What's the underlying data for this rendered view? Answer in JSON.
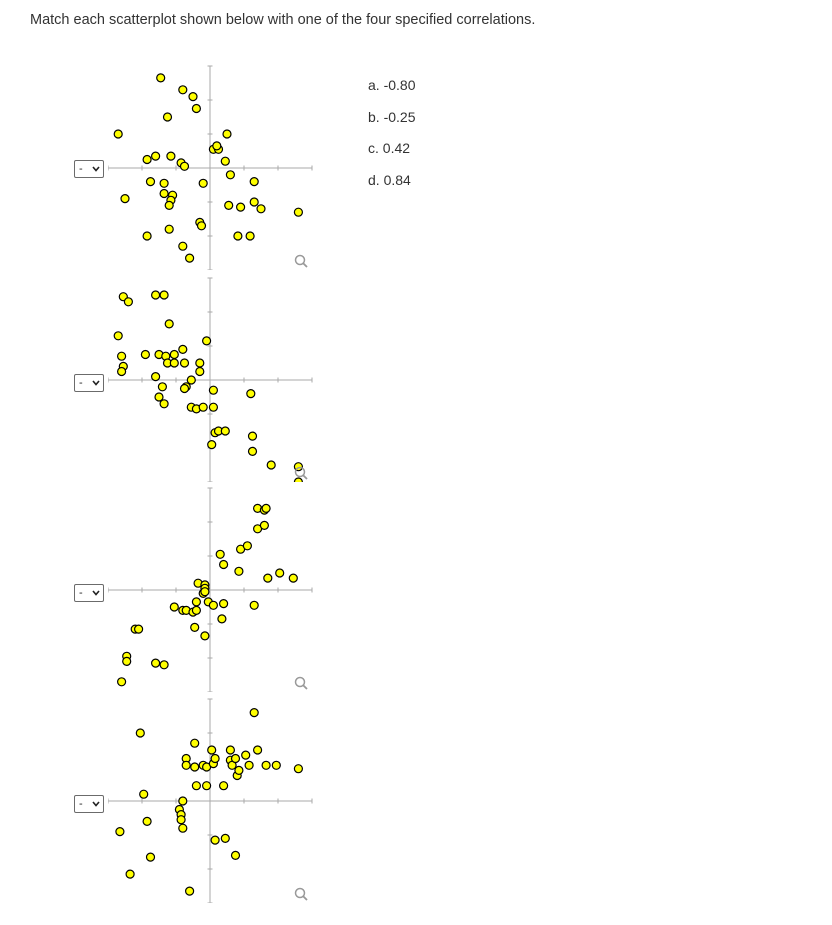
{
  "question": "Match each scatterplot shown below with one of the four specified correlations.",
  "select_value": "-",
  "choices": [
    "a. -0.80",
    "b. -0.25",
    "c. 0.42",
    "d. 0.84"
  ],
  "colors": {
    "point_fill": "#ffff00",
    "point_stroke": "#000000",
    "axis": "#aaaaaa",
    "zoom": "#999999"
  },
  "icons": [
    "chevron-down-icon",
    "magnifier-icon"
  ],
  "chart_data": [
    {
      "type": "scatter",
      "xlim": [
        -3,
        3
      ],
      "ylim": [
        -3,
        3
      ],
      "points": [
        [
          -1.45,
          2.65
        ],
        [
          -0.8,
          2.3
        ],
        [
          -1.25,
          1.5
        ],
        [
          -0.4,
          1.75
        ],
        [
          -0.5,
          2.1
        ],
        [
          -2.7,
          1.0
        ],
        [
          -1.85,
          0.25
        ],
        [
          -1.6,
          0.35
        ],
        [
          -1.15,
          0.35
        ],
        [
          -0.85,
          0.15
        ],
        [
          -0.75,
          0.05
        ],
        [
          0.5,
          1.0
        ],
        [
          0.1,
          0.55
        ],
        [
          0.25,
          0.55
        ],
        [
          0.2,
          0.65
        ],
        [
          0.45,
          0.2
        ],
        [
          0.6,
          -0.2
        ],
        [
          1.3,
          -0.4
        ],
        [
          -1.75,
          -0.4
        ],
        [
          -1.35,
          -0.45
        ],
        [
          -1.35,
          -0.75
        ],
        [
          -1.1,
          -0.8
        ],
        [
          -1.15,
          -0.95
        ],
        [
          -1.2,
          -1.1
        ],
        [
          -0.2,
          -0.45
        ],
        [
          0.55,
          -1.1
        ],
        [
          0.9,
          -1.15
        ],
        [
          1.3,
          -1.0
        ],
        [
          1.5,
          -1.2
        ],
        [
          -2.5,
          -0.9
        ],
        [
          -1.85,
          -2.0
        ],
        [
          -1.2,
          -1.8
        ],
        [
          -0.8,
          -2.3
        ],
        [
          -0.3,
          -1.6
        ],
        [
          -0.25,
          -1.7
        ],
        [
          0.82,
          -2.0
        ],
        [
          1.18,
          -2.0
        ],
        [
          -0.6,
          -2.65
        ],
        [
          2.6,
          -1.3
        ]
      ]
    },
    {
      "type": "scatter",
      "xlim": [
        -3,
        3
      ],
      "ylim": [
        -3,
        3
      ],
      "points": [
        [
          -2.55,
          2.45
        ],
        [
          -2.4,
          2.3
        ],
        [
          -1.6,
          2.5
        ],
        [
          -1.35,
          2.5
        ],
        [
          -1.2,
          1.65
        ],
        [
          -2.7,
          1.3
        ],
        [
          -2.6,
          0.7
        ],
        [
          -2.55,
          0.4
        ],
        [
          -2.6,
          0.25
        ],
        [
          -1.9,
          0.75
        ],
        [
          -1.5,
          0.75
        ],
        [
          -1.3,
          0.7
        ],
        [
          -1.05,
          0.75
        ],
        [
          -1.25,
          0.5
        ],
        [
          -1.05,
          0.5
        ],
        [
          -0.8,
          0.9
        ],
        [
          -0.75,
          0.5
        ],
        [
          -0.1,
          1.15
        ],
        [
          -0.3,
          0.5
        ],
        [
          -0.3,
          0.25
        ],
        [
          -1.6,
          0.1
        ],
        [
          -1.4,
          -0.2
        ],
        [
          -1.5,
          -0.5
        ],
        [
          -1.35,
          -0.7
        ],
        [
          -0.7,
          -0.2
        ],
        [
          -0.75,
          -0.25
        ],
        [
          -0.55,
          0.0
        ],
        [
          0.1,
          -0.3
        ],
        [
          -0.55,
          -0.8
        ],
        [
          -0.4,
          -0.85
        ],
        [
          -0.2,
          -0.8
        ],
        [
          0.1,
          -0.8
        ],
        [
          1.2,
          -0.4
        ],
        [
          0.15,
          -1.55
        ],
        [
          0.25,
          -1.5
        ],
        [
          0.45,
          -1.5
        ],
        [
          0.05,
          -1.9
        ],
        [
          1.25,
          -1.65
        ],
        [
          1.25,
          -2.1
        ],
        [
          1.8,
          -2.5
        ],
        [
          2.6,
          -2.55
        ],
        [
          2.6,
          -3.0
        ]
      ]
    },
    {
      "type": "scatter",
      "xlim": [
        -3,
        3
      ],
      "ylim": [
        -3,
        3
      ],
      "points": [
        [
          1.4,
          2.4
        ],
        [
          1.6,
          2.35
        ],
        [
          1.65,
          2.4
        ],
        [
          1.4,
          1.8
        ],
        [
          1.6,
          1.9
        ],
        [
          0.9,
          1.2
        ],
        [
          1.1,
          1.3
        ],
        [
          0.3,
          1.05
        ],
        [
          0.4,
          0.75
        ],
        [
          0.85,
          0.55
        ],
        [
          2.05,
          0.5
        ],
        [
          1.7,
          0.35
        ],
        [
          2.45,
          0.35
        ],
        [
          -0.35,
          0.2
        ],
        [
          -0.15,
          0.15
        ],
        [
          -0.15,
          0.05
        ],
        [
          -0.2,
          -0.1
        ],
        [
          -0.15,
          -0.05
        ],
        [
          -0.05,
          -0.35
        ],
        [
          -1.05,
          -0.5
        ],
        [
          -0.8,
          -0.6
        ],
        [
          -0.7,
          -0.6
        ],
        [
          -0.5,
          -0.65
        ],
        [
          -0.4,
          -0.6
        ],
        [
          -0.4,
          -0.35
        ],
        [
          0.1,
          -0.45
        ],
        [
          0.4,
          -0.4
        ],
        [
          1.3,
          -0.45
        ],
        [
          0.35,
          -0.85
        ],
        [
          -0.45,
          -1.1
        ],
        [
          -0.15,
          -1.35
        ],
        [
          -2.2,
          -1.15
        ],
        [
          -2.1,
          -1.15
        ],
        [
          -2.45,
          -1.95
        ],
        [
          -2.45,
          -2.1
        ],
        [
          -1.6,
          -2.15
        ],
        [
          -1.35,
          -2.2
        ],
        [
          -2.6,
          -2.7
        ]
      ]
    },
    {
      "type": "scatter",
      "xlim": [
        -3,
        3
      ],
      "ylim": [
        -3,
        3
      ],
      "points": [
        [
          1.3,
          2.6
        ],
        [
          -2.05,
          2.0
        ],
        [
          -0.45,
          1.7
        ],
        [
          0.05,
          1.5
        ],
        [
          0.6,
          1.5
        ],
        [
          1.4,
          1.5
        ],
        [
          0.6,
          1.2
        ],
        [
          0.65,
          1.05
        ],
        [
          0.75,
          1.25
        ],
        [
          1.05,
          1.35
        ],
        [
          -0.7,
          1.25
        ],
        [
          -0.7,
          1.05
        ],
        [
          -0.45,
          1.0
        ],
        [
          -0.2,
          1.05
        ],
        [
          -0.1,
          1.0
        ],
        [
          0.1,
          1.1
        ],
        [
          0.15,
          1.25
        ],
        [
          0.8,
          0.75
        ],
        [
          0.85,
          0.9
        ],
        [
          1.15,
          1.05
        ],
        [
          1.65,
          1.05
        ],
        [
          1.95,
          1.05
        ],
        [
          2.6,
          0.95
        ],
        [
          -0.4,
          0.45
        ],
        [
          -0.1,
          0.45
        ],
        [
          0.4,
          0.45
        ],
        [
          -0.8,
          0.0
        ],
        [
          -0.9,
          -0.25
        ],
        [
          -0.85,
          -0.4
        ],
        [
          -0.85,
          -0.55
        ],
        [
          -0.8,
          -0.8
        ],
        [
          -1.95,
          0.2
        ],
        [
          -2.65,
          -0.9
        ],
        [
          -1.85,
          -0.6
        ],
        [
          0.15,
          -1.15
        ],
        [
          0.45,
          -1.1
        ],
        [
          0.75,
          -1.6
        ],
        [
          -1.75,
          -1.65
        ],
        [
          -2.35,
          -2.15
        ],
        [
          -0.6,
          -2.65
        ]
      ]
    }
  ]
}
